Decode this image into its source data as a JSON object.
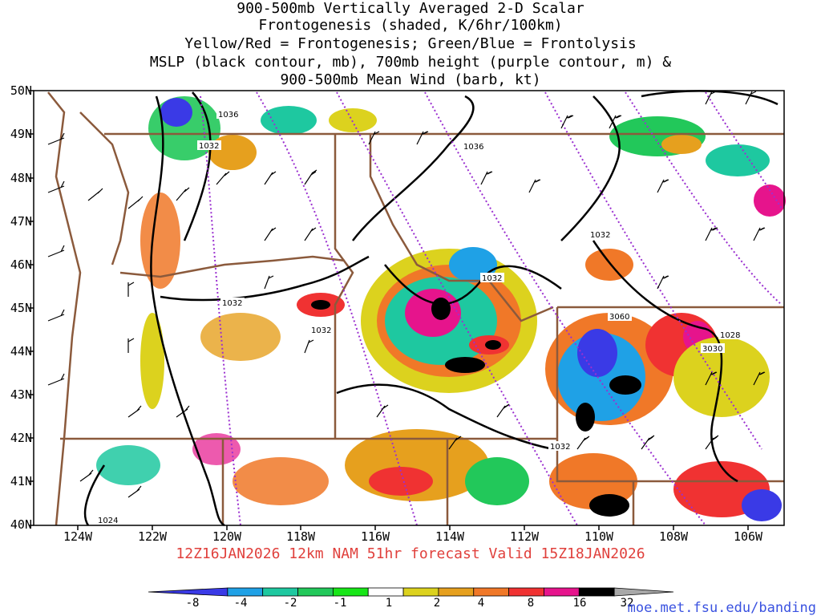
{
  "title_lines": [
    "900-500mb Vertically Averaged 2-D Scalar",
    "Frontogenesis (shaded, K/6hr/100km)",
    "Yellow/Red = Frontogenesis;  Green/Blue = Frontolysis",
    "MSLP (black contour, mb), 700mb height (purple contour, m) &",
    "900-500mb Mean Wind (barb, kt)"
  ],
  "lat_labels": [
    "50N",
    "49N",
    "48N",
    "47N",
    "46N",
    "45N",
    "44N",
    "43N",
    "42N",
    "41N",
    "40N"
  ],
  "lon_labels": [
    "124W",
    "122W",
    "120W",
    "118W",
    "116W",
    "114W",
    "112W",
    "110W",
    "108W",
    "106W"
  ],
  "contour_labels": [
    "1036",
    "1032",
    "1036",
    "1032",
    "1032",
    "1032",
    "1032",
    "1028",
    "1032",
    "1024"
  ],
  "height_labels": [
    "3060",
    "3030"
  ],
  "valid_line": "12Z16JAN2026 12km NAM 51hr forecast Valid 15Z18JAN2026",
  "colorbar": {
    "labels": [
      "-8",
      "-4",
      "-2",
      "-1",
      "1",
      "2",
      "4",
      "8",
      "16",
      "32"
    ],
    "colors": [
      "#3a3ae6",
      "#1fa1e6",
      "#1ec8a0",
      "#22c85a",
      "#18e618",
      "#ffffff",
      "#dcd21e",
      "#e6a01e",
      "#f07828",
      "#f03232",
      "#e6148c",
      "#000000",
      "#a8a8a8"
    ]
  },
  "legend_colors": {
    "mslp": "#000000",
    "height_700mb": "#9b30d0",
    "borders": "#8b5a3c"
  },
  "source_url": "moe.met.fsu.edu/banding"
}
